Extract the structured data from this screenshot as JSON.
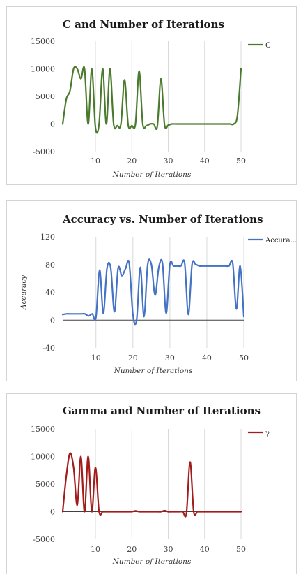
{
  "chart_data": [
    {
      "type": "line",
      "title": "C and Number of Iterations",
      "xlabel": "Number of Iterations",
      "ylabel": "",
      "xlim": [
        1,
        50
      ],
      "ylim": [
        -5000,
        15000
      ],
      "yticks": [
        -5000,
        0,
        5000,
        10000,
        15000
      ],
      "yticklabels": [
        "-5000",
        "0",
        "5000",
        "10000",
        "15000"
      ],
      "xticks": [
        10,
        20,
        30,
        40,
        50
      ],
      "xticklabels": [
        "10",
        "20",
        "30",
        "40",
        "50"
      ],
      "grid": "vertical",
      "legend_position": "right",
      "series": [
        {
          "name": "C",
          "color": "#4a7a2c",
          "x": [
            1,
            2,
            3,
            4,
            5,
            6,
            7,
            8,
            9,
            10,
            11,
            12,
            13,
            14,
            15,
            16,
            17,
            18,
            19,
            20,
            21,
            22,
            23,
            24,
            25,
            26,
            27,
            28,
            29,
            30,
            31,
            32,
            33,
            34,
            35,
            36,
            37,
            38,
            39,
            40,
            41,
            42,
            43,
            44,
            45,
            46,
            47,
            48,
            49,
            50
          ],
          "y": [
            0,
            4500,
            6000,
            10000,
            10000,
            8200,
            10000,
            0,
            10000,
            -600,
            0,
            10000,
            0,
            10000,
            0,
            -300,
            0,
            8000,
            -200,
            -300,
            0,
            9600,
            0,
            -300,
            0,
            0,
            -400,
            8200,
            -200,
            -200,
            0,
            0,
            0,
            0,
            0,
            0,
            0,
            0,
            0,
            0,
            0,
            0,
            0,
            0,
            0,
            0,
            0,
            0,
            1500,
            10000
          ]
        }
      ]
    },
    {
      "type": "line",
      "title": "Accuracy vs. Number of Iterations",
      "xlabel": "Number of Iterations",
      "ylabel": "Accuracy",
      "xlim": [
        1,
        50
      ],
      "ylim": [
        -40,
        120
      ],
      "yticks": [
        -40,
        0,
        40,
        80,
        120
      ],
      "yticklabels": [
        "-40",
        "0",
        "40",
        "80",
        "120"
      ],
      "xticks": [
        10,
        20,
        30,
        40,
        50
      ],
      "xticklabels": [
        "10",
        "20",
        "30",
        "40",
        "50"
      ],
      "grid": "vertical",
      "legend_position": "right",
      "series": [
        {
          "name": "Accura...",
          "color": "#4472c4",
          "x": [
            1,
            2,
            3,
            4,
            5,
            6,
            7,
            8,
            9,
            10,
            11,
            12,
            13,
            14,
            15,
            16,
            17,
            18,
            19,
            20,
            21,
            22,
            23,
            24,
            25,
            26,
            27,
            28,
            29,
            30,
            31,
            32,
            33,
            34,
            35,
            36,
            37,
            38,
            39,
            40,
            41,
            42,
            43,
            44,
            45,
            46,
            47,
            48,
            49,
            50
          ],
          "y": [
            8,
            9,
            9,
            9,
            9,
            9,
            9,
            6,
            9,
            4,
            72,
            10,
            75,
            75,
            12,
            75,
            64,
            74,
            82,
            8,
            0,
            76,
            5,
            80,
            80,
            36,
            76,
            82,
            10,
            80,
            78,
            78,
            78,
            82,
            8,
            80,
            80,
            78,
            78,
            78,
            78,
            78,
            78,
            78,
            78,
            78,
            82,
            16,
            78,
            5
          ]
        }
      ]
    },
    {
      "type": "line",
      "title": "Gamma and Number of Iterations",
      "xlabel": "Number of Iterations",
      "ylabel": "",
      "xlim": [
        1,
        50
      ],
      "ylim": [
        -5000,
        15000
      ],
      "yticks": [
        -5000,
        0,
        5000,
        10000,
        15000
      ],
      "yticklabels": [
        "-5000",
        "0",
        "5000",
        "10000",
        "15000"
      ],
      "xticks": [
        10,
        20,
        30,
        40,
        50
      ],
      "xticklabels": [
        "10",
        "20",
        "30",
        "40",
        "50"
      ],
      "grid": "vertical",
      "legend_position": "right",
      "series": [
        {
          "name": "γ",
          "color": "#a31c1c",
          "x": [
            1,
            2,
            3,
            4,
            5,
            6,
            7,
            8,
            9,
            10,
            11,
            12,
            13,
            14,
            15,
            16,
            17,
            18,
            19,
            20,
            21,
            22,
            23,
            24,
            25,
            26,
            27,
            28,
            29,
            30,
            31,
            32,
            33,
            34,
            35,
            36,
            37,
            38,
            39,
            40,
            41,
            42,
            43,
            44,
            45,
            46,
            47,
            48,
            49,
            50
          ],
          "y": [
            0,
            6500,
            10600,
            8000,
            1200,
            10000,
            0,
            10000,
            0,
            8000,
            0,
            0,
            0,
            0,
            0,
            0,
            0,
            0,
            0,
            0,
            150,
            0,
            0,
            0,
            0,
            0,
            0,
            0,
            200,
            0,
            0,
            0,
            0,
            0,
            -300,
            9000,
            0,
            0,
            0,
            0,
            0,
            0,
            0,
            0,
            0,
            0,
            0,
            0,
            0,
            0
          ]
        }
      ]
    }
  ]
}
